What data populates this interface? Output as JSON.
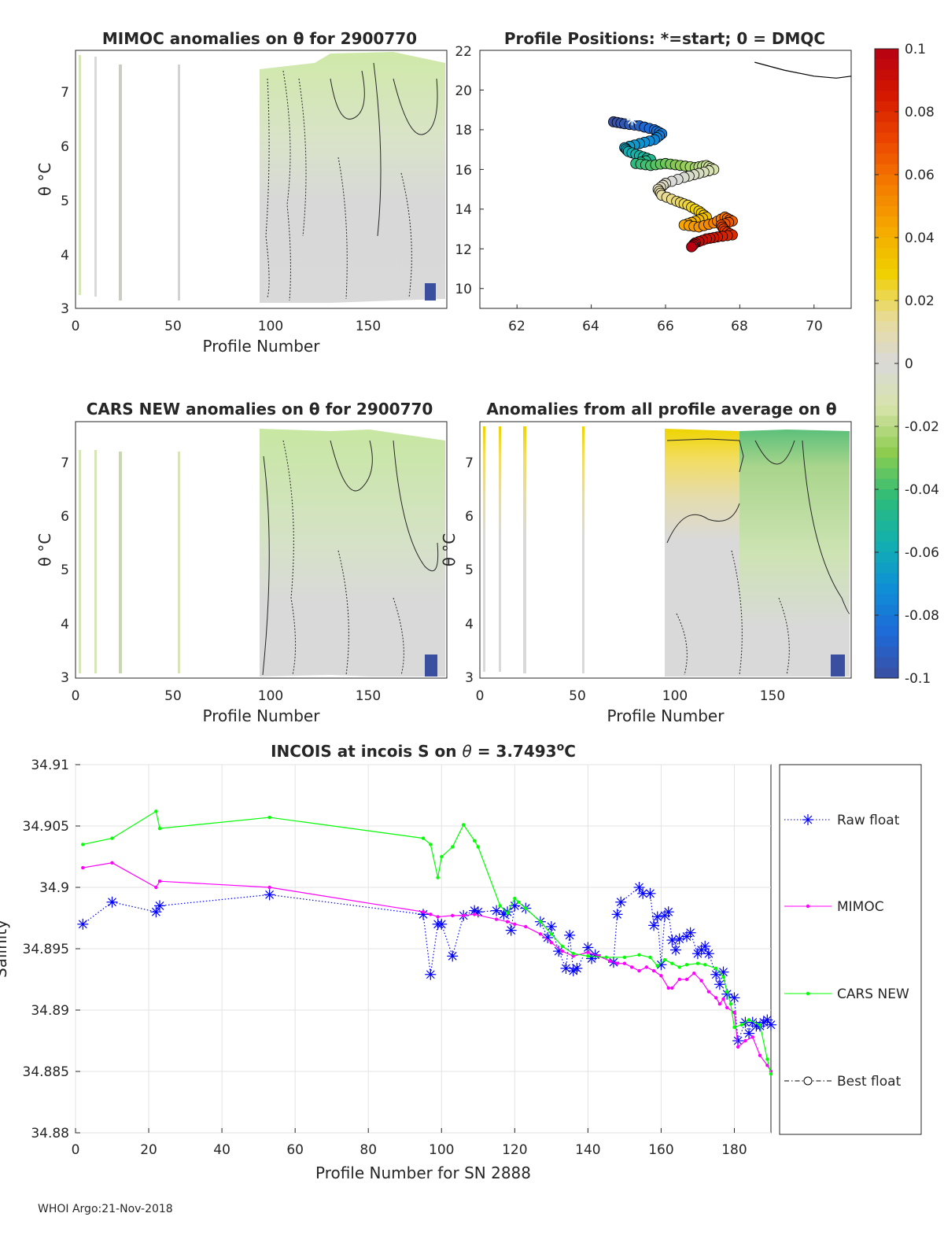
{
  "footer": "WHOI Argo:21-Nov-2018",
  "colors": {
    "raw": "#0000ff",
    "mimoc": "#ff00ff",
    "cars": "#00ff00",
    "best": "#000000",
    "colorbar": [
      "#3b4fa0",
      "#1e6ad8",
      "#0f8fd6",
      "#12b0b0",
      "#2dbc7a",
      "#8ccc4e",
      "#d6e3a8",
      "#d9d9d9",
      "#e8dc98",
      "#f0d000",
      "#f5a800",
      "#f47a00",
      "#ea4400",
      "#d31700",
      "#b70012"
    ]
  },
  "chart_data": [
    {
      "id": "mimoc",
      "type": "heatmap",
      "title": "MIMOC anomalies on θ  for 2900770",
      "xlabel": "Profile Number",
      "ylabel": "θ °C",
      "xlim": [
        0,
        190
      ],
      "ylim": [
        3,
        7.7
      ],
      "xticks": [
        "0",
        "50",
        "100",
        "150"
      ],
      "yticks": [
        "3",
        "4",
        "5",
        "6",
        "7"
      ],
      "note": "Anomaly field mostly near 0 (grey) with slight negative (green) values above θ=6 for profiles 130-190; small strong negative patch near profile 185 at θ≈3.2"
    },
    {
      "id": "positions",
      "type": "scatter",
      "title": "Profile Positions: *=start; 0 = DMQC",
      "xlim": [
        61,
        71
      ],
      "ylim": [
        9,
        22
      ],
      "xticks": [
        "62",
        "64",
        "66",
        "68",
        "70"
      ],
      "yticks": [
        "10",
        "12",
        "14",
        "16",
        "18",
        "20",
        "22"
      ],
      "start_marker": [
        65.1,
        18.5
      ],
      "track": [
        [
          64.6,
          18.4
        ],
        [
          64.9,
          18.3
        ],
        [
          65.3,
          18.2
        ],
        [
          65.7,
          18.0
        ],
        [
          65.9,
          17.8
        ],
        [
          65.7,
          17.5
        ],
        [
          65.3,
          17.3
        ],
        [
          64.9,
          17.1
        ],
        [
          65.0,
          16.9
        ],
        [
          65.3,
          16.7
        ],
        [
          65.6,
          16.5
        ],
        [
          65.2,
          16.3
        ],
        [
          65.6,
          16.2
        ],
        [
          66.0,
          16.3
        ],
        [
          66.4,
          16.2
        ],
        [
          66.8,
          16.1
        ],
        [
          67.1,
          16.2
        ],
        [
          67.3,
          16.0
        ],
        [
          66.9,
          15.8
        ],
        [
          66.5,
          15.6
        ],
        [
          66.0,
          15.3
        ],
        [
          65.8,
          15.0
        ],
        [
          65.9,
          14.7
        ],
        [
          66.3,
          14.4
        ],
        [
          66.6,
          14.2
        ],
        [
          66.9,
          13.9
        ],
        [
          67.1,
          13.6
        ],
        [
          66.8,
          13.4
        ],
        [
          66.5,
          13.2
        ],
        [
          66.9,
          13.1
        ],
        [
          67.3,
          13.3
        ],
        [
          67.6,
          13.6
        ],
        [
          67.8,
          13.4
        ],
        [
          67.5,
          13.2
        ],
        [
          67.6,
          12.9
        ],
        [
          67.8,
          12.7
        ],
        [
          67.4,
          12.6
        ],
        [
          67.1,
          12.5
        ],
        [
          66.8,
          12.3
        ],
        [
          66.7,
          12.1
        ]
      ],
      "other_track": [
        [
          68.4,
          21.4
        ],
        [
          69.2,
          21.0
        ],
        [
          70.0,
          20.7
        ],
        [
          70.6,
          20.6
        ],
        [
          71.0,
          20.7
        ]
      ]
    },
    {
      "id": "cars",
      "type": "heatmap",
      "title": "CARS NEW anomalies on θ for 2900770",
      "xlabel": "Profile Number",
      "ylabel": "θ °C",
      "xlim": [
        0,
        190
      ],
      "ylim": [
        3,
        7.7
      ],
      "xticks": [
        "0",
        "50",
        "100",
        "150"
      ],
      "yticks": [
        "3",
        "4",
        "5",
        "6",
        "7"
      ],
      "note": "Similar to MIMOC panel; negative (green) anomalies above θ=5 for profiles 140-190"
    },
    {
      "id": "allavg",
      "type": "heatmap",
      "title": "Anomalies from all profile average on θ",
      "xlabel": "Profile Number",
      "ylabel": "θ °C",
      "xlim": [
        0,
        190
      ],
      "ylim": [
        3,
        7.7
      ],
      "xticks": [
        "0",
        "50",
        "100",
        "150"
      ],
      "yticks": [
        "3",
        "4",
        "5",
        "6",
        "7"
      ],
      "note": "Positive (yellow, ~0.02-0.03) anomalies above θ=7 for profiles 95-135; negative (green) for profiles 160-190"
    },
    {
      "id": "colorbar",
      "type": "colorbar",
      "range": [
        -0.1,
        0.1
      ],
      "ticks": [
        "0.1",
        "0.08",
        "0.06",
        "0.04",
        "0.02",
        "0",
        "-0.02",
        "-0.04",
        "-0.06",
        "-0.08",
        "-0.1"
      ]
    },
    {
      "id": "incois",
      "type": "line",
      "title": "INCOIS at incois S on θ = 3.7493°C",
      "title_parts": [
        "INCOIS at incois S on ",
        "θ",
        " = 3.7493",
        "o",
        "C"
      ],
      "xlabel": "Profile Number for SN 2888",
      "ylabel": "Salinity",
      "xlim": [
        0,
        190
      ],
      "ylim": [
        34.88,
        34.91
      ],
      "xticks": [
        "0",
        "20",
        "40",
        "60",
        "80",
        "100",
        "120",
        "140",
        "160",
        "180"
      ],
      "yticks": [
        "34.91",
        "34.905",
        "34.9",
        "34.895",
        "34.89",
        "34.885",
        "34.88"
      ],
      "grid": true,
      "legend": [
        "Raw float",
        "MIMOC",
        "CARS NEW",
        "Best float"
      ],
      "legend_placement": "right, outside",
      "series": [
        {
          "name": "Raw float",
          "points": [
            [
              2,
              34.897
            ],
            [
              10,
              34.8988
            ],
            [
              22,
              34.898
            ],
            [
              23,
              34.8985
            ],
            [
              53,
              34.8994
            ],
            [
              95,
              34.8978
            ],
            [
              97,
              34.8929
            ],
            [
              99,
              34.897
            ],
            [
              100,
              34.897
            ],
            [
              103,
              34.8944
            ],
            [
              106,
              34.8977
            ],
            [
              109,
              34.8981
            ],
            [
              110,
              34.898
            ],
            [
              115,
              34.8981
            ],
            [
              117,
              34.8978
            ],
            [
              118,
              34.898
            ],
            [
              119,
              34.8965
            ],
            [
              120,
              34.8985
            ],
            [
              123,
              34.8983
            ],
            [
              127,
              34.8972
            ],
            [
              129,
              34.8959
            ],
            [
              130,
              34.8968
            ],
            [
              132,
              34.8948
            ],
            [
              134,
              34.8934
            ],
            [
              135,
              34.8961
            ],
            [
              136,
              34.8932
            ],
            [
              137,
              34.8934
            ],
            [
              140,
              34.8951
            ],
            [
              141,
              34.8942
            ],
            [
              142,
              34.8945
            ],
            [
              147,
              34.8939
            ],
            [
              148,
              34.8978
            ],
            [
              149,
              34.8988
            ],
            [
              154,
              34.9
            ],
            [
              155,
              34.8995
            ],
            [
              157,
              34.8995
            ],
            [
              158,
              34.8969
            ],
            [
              159,
              34.8976
            ],
            [
              160,
              34.8937
            ],
            [
              161,
              34.8977
            ],
            [
              162,
              34.898
            ],
            [
              163,
              34.8957
            ],
            [
              164,
              34.8949
            ],
            [
              165,
              34.8958
            ],
            [
              167,
              34.896
            ],
            [
              168,
              34.8963
            ],
            [
              170,
              34.8946
            ],
            [
              171,
              34.8949
            ],
            [
              172,
              34.8952
            ],
            [
              173,
              34.8946
            ],
            [
              175,
              34.8929
            ],
            [
              176,
              34.8921
            ],
            [
              177,
              34.8931
            ],
            [
              178,
              34.8913
            ],
            [
              180,
              34.891
            ],
            [
              181,
              34.8875
            ],
            [
              183,
              34.889
            ],
            [
              184,
              34.8881
            ],
            [
              185,
              34.889
            ],
            [
              186,
              34.8887
            ],
            [
              187,
              34.8887
            ],
            [
              188,
              34.889
            ],
            [
              189,
              34.8892
            ],
            [
              190,
              34.8888
            ]
          ]
        },
        {
          "name": "MIMOC",
          "points": [
            [
              2,
              34.9016
            ],
            [
              10,
              34.902
            ],
            [
              22,
              34.9
            ],
            [
              23,
              34.9005
            ],
            [
              53,
              34.9
            ],
            [
              95,
              34.898
            ],
            [
              97,
              34.8978
            ],
            [
              99,
              34.8976
            ],
            [
              103,
              34.8977
            ],
            [
              106,
              34.8977
            ],
            [
              109,
              34.8978
            ],
            [
              115,
              34.8974
            ],
            [
              118,
              34.8972
            ],
            [
              120,
              34.897
            ],
            [
              123,
              34.8968
            ],
            [
              127,
              34.8962
            ],
            [
              130,
              34.8955
            ],
            [
              133,
              34.8948
            ],
            [
              136,
              34.8944
            ],
            [
              140,
              34.8947
            ],
            [
              143,
              34.8944
            ],
            [
              146,
              34.894
            ],
            [
              148,
              34.8938
            ],
            [
              150,
              34.8938
            ],
            [
              152,
              34.8935
            ],
            [
              154,
              34.8932
            ],
            [
              156,
              34.8935
            ],
            [
              158,
              34.8932
            ],
            [
              160,
              34.8928
            ],
            [
              162,
              34.8918
            ],
            [
              163,
              34.8918
            ],
            [
              165,
              34.8925
            ],
            [
              167,
              34.8925
            ],
            [
              169,
              34.893
            ],
            [
              171,
              34.8924
            ],
            [
              173,
              34.8915
            ],
            [
              175,
              34.891
            ],
            [
              176,
              34.8905
            ],
            [
              177,
              34.8909
            ],
            [
              178,
              34.8902
            ],
            [
              180,
              34.8898
            ],
            [
              181,
              34.887
            ],
            [
              183,
              34.8875
            ],
            [
              185,
              34.8878
            ],
            [
              187,
              34.8863
            ],
            [
              189,
              34.8855
            ],
            [
              190,
              34.885
            ]
          ]
        },
        {
          "name": "CARS NEW",
          "points": [
            [
              2,
              34.9035
            ],
            [
              10,
              34.904
            ],
            [
              22,
              34.9062
            ],
            [
              23,
              34.9048
            ],
            [
              53,
              34.9057
            ],
            [
              95,
              34.904
            ],
            [
              97,
              34.9035
            ],
            [
              99,
              34.9008
            ],
            [
              100,
              34.9025
            ],
            [
              103,
              34.9033
            ],
            [
              106,
              34.9051
            ],
            [
              109,
              34.9038
            ],
            [
              110,
              34.9033
            ],
            [
              116,
              34.8985
            ],
            [
              118,
              34.8979
            ],
            [
              120,
              34.8991
            ],
            [
              121,
              34.8988
            ],
            [
              123,
              34.8983
            ],
            [
              127,
              34.8972
            ],
            [
              130,
              34.8962
            ],
            [
              133,
              34.8952
            ],
            [
              136,
              34.8946
            ],
            [
              140,
              34.8944
            ],
            [
              145,
              34.8943
            ],
            [
              150,
              34.8943
            ],
            [
              154,
              34.8945
            ],
            [
              157,
              34.8943
            ],
            [
              159,
              34.8936
            ],
            [
              161,
              34.8941
            ],
            [
              163,
              34.8938
            ],
            [
              165,
              34.8935
            ],
            [
              167,
              34.8937
            ],
            [
              170,
              34.8938
            ],
            [
              172,
              34.8937
            ],
            [
              175,
              34.8934
            ],
            [
              177,
              34.8927
            ],
            [
              178,
              34.8915
            ],
            [
              179,
              34.8905
            ],
            [
              180,
              34.8886
            ],
            [
              182,
              34.8888
            ],
            [
              184,
              34.8892
            ],
            [
              187,
              34.8888
            ],
            [
              189,
              34.886
            ],
            [
              190,
              34.8848
            ]
          ]
        },
        {
          "name": "Best float",
          "points": []
        }
      ]
    }
  ]
}
